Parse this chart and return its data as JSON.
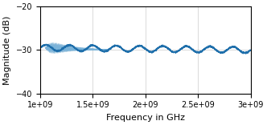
{
  "freq_start": 1000000000.0,
  "freq_end": 3000000000.0,
  "num_points": 2000,
  "mean_level": -29.5,
  "mean_slope": -0.5,
  "ripple_amplitude": 0.7,
  "ripple_frequency": 9,
  "noise_std_main": 0.08,
  "uncertainty_region_start": 1050000000.0,
  "uncertainty_region_end": 1650000000.0,
  "uncertainty_amplitude": 2.5,
  "uncertainty_alpha": 0.18,
  "num_unc_traces": 60,
  "main_line_color": "#1f6fab",
  "uncertainty_color": "#7ab3d9",
  "xlabel": "Frequency in GHz",
  "ylabel": "Magnitude (dB)",
  "ylim": [
    -40,
    -20
  ],
  "xlim": [
    1000000000.0,
    3000000000.0
  ],
  "yticks": [
    -40,
    -30,
    -20
  ],
  "xticks": [
    1000000000.0,
    1500000000.0,
    2000000000.0,
    2500000000.0,
    3000000000.0
  ],
  "grid": true,
  "title": ""
}
